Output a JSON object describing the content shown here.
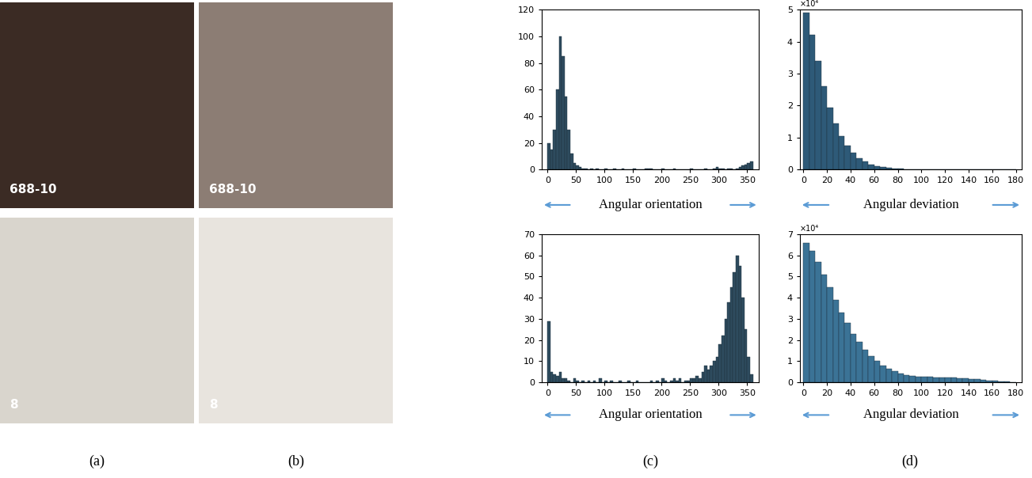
{
  "chart_data": [
    {
      "type": "histogram",
      "x_label": "Angular orientation",
      "color": "#2e4b5e",
      "bins": [
        0,
        5,
        10,
        15,
        20,
        25,
        30,
        35,
        40,
        45,
        50,
        55,
        60,
        65,
        70,
        75,
        80,
        85,
        90,
        95,
        100,
        105,
        110,
        115,
        120,
        125,
        130,
        135,
        140,
        145,
        150,
        155,
        160,
        165,
        170,
        175,
        180,
        185,
        190,
        195,
        200,
        205,
        210,
        215,
        220,
        225,
        230,
        235,
        240,
        245,
        250,
        255,
        260,
        265,
        270,
        275,
        280,
        285,
        290,
        295,
        300,
        305,
        310,
        315,
        320,
        325,
        330,
        335,
        340,
        345,
        350,
        355,
        360
      ],
      "counts": [
        20,
        15,
        30,
        60,
        100,
        85,
        55,
        30,
        12,
        5,
        3,
        2,
        1,
        1,
        0,
        1,
        0,
        1,
        0,
        0,
        1,
        0,
        0,
        1,
        0,
        0,
        1,
        0,
        0,
        0,
        1,
        0,
        0,
        0,
        1,
        1,
        1,
        0,
        0,
        0,
        1,
        0,
        0,
        0,
        1,
        0,
        0,
        0,
        0,
        0,
        1,
        0,
        0,
        0,
        0,
        1,
        0,
        0,
        1,
        2,
        1,
        1,
        0,
        1,
        1,
        0,
        1,
        2,
        3,
        4,
        5,
        6
      ],
      "xlim": [
        -10,
        370
      ],
      "ylim": [
        0,
        120
      ],
      "xticks": [
        0,
        50,
        100,
        150,
        200,
        250,
        300,
        350
      ],
      "yticks": [
        0,
        20,
        40,
        60,
        80,
        100,
        120
      ]
    },
    {
      "type": "histogram",
      "x_label": "Angular deviation",
      "color": "#2e5a78",
      "bins": [
        0,
        5,
        10,
        15,
        20,
        25,
        30,
        35,
        40,
        45,
        50,
        55,
        60,
        65,
        70,
        75,
        80,
        85,
        90,
        95,
        100,
        105,
        110,
        115,
        120,
        125,
        130,
        135,
        140,
        145,
        150,
        155,
        160,
        165,
        170,
        175,
        180
      ],
      "counts": [
        4.9,
        4.2,
        3.4,
        2.6,
        1.95,
        1.45,
        1.05,
        0.75,
        0.52,
        0.36,
        0.25,
        0.17,
        0.12,
        0.08,
        0.055,
        0.04,
        0.028,
        0.02,
        0.014,
        0.01,
        0.007,
        0.005,
        0.004,
        0.003,
        0.002,
        0.002,
        0.001,
        0.001,
        0.001,
        0,
        0,
        0,
        0,
        0,
        0,
        0
      ],
      "xlim": [
        -3,
        185
      ],
      "ylim": [
        0,
        5
      ],
      "xticks": [
        0,
        20,
        40,
        60,
        80,
        100,
        120,
        140,
        160,
        180
      ],
      "yticks": [
        0,
        1,
        2,
        3,
        4,
        5
      ],
      "annotations": [
        "×10⁴"
      ]
    },
    {
      "type": "histogram",
      "x_label": "Angular orientation",
      "color": "#2e4b5e",
      "bins": [
        0,
        5,
        10,
        15,
        20,
        25,
        30,
        35,
        40,
        45,
        50,
        55,
        60,
        65,
        70,
        75,
        80,
        85,
        90,
        95,
        100,
        105,
        110,
        115,
        120,
        125,
        130,
        135,
        140,
        145,
        150,
        155,
        160,
        165,
        170,
        175,
        180,
        185,
        190,
        195,
        200,
        205,
        210,
        215,
        220,
        225,
        230,
        235,
        240,
        245,
        250,
        255,
        260,
        265,
        270,
        275,
        280,
        285,
        290,
        295,
        300,
        305,
        310,
        315,
        320,
        325,
        330,
        335,
        340,
        345,
        350,
        355,
        360
      ],
      "counts": [
        29,
        5,
        4,
        3,
        5,
        2,
        2,
        1,
        0,
        2,
        1,
        0,
        1,
        0,
        1,
        0,
        1,
        0,
        2,
        0,
        1,
        0,
        1,
        0,
        0,
        1,
        0,
        0,
        1,
        0,
        0,
        1,
        0,
        0,
        0,
        0,
        1,
        0,
        1,
        0,
        2,
        1,
        0,
        1,
        2,
        1,
        2,
        0,
        1,
        1,
        2,
        2,
        3,
        2,
        5,
        8,
        6,
        8,
        10,
        12,
        18,
        22,
        30,
        38,
        45,
        52,
        60,
        55,
        40,
        25,
        12,
        4
      ],
      "xlim": [
        -10,
        370
      ],
      "ylim": [
        0,
        70
      ],
      "xticks": [
        0,
        50,
        100,
        150,
        200,
        250,
        300,
        350
      ],
      "yticks": [
        0,
        10,
        20,
        30,
        40,
        50,
        60,
        70
      ]
    },
    {
      "type": "histogram",
      "x_label": "Angular deviation",
      "color": "#3b7396",
      "bins": [
        0,
        5,
        10,
        15,
        20,
        25,
        30,
        35,
        40,
        45,
        50,
        55,
        60,
        65,
        70,
        75,
        80,
        85,
        90,
        95,
        100,
        105,
        110,
        115,
        120,
        125,
        130,
        135,
        140,
        145,
        150,
        155,
        160,
        165,
        170,
        175,
        180
      ],
      "counts": [
        6.6,
        6.2,
        5.7,
        5.1,
        4.5,
        3.9,
        3.3,
        2.8,
        2.3,
        1.9,
        1.55,
        1.25,
        1.0,
        0.8,
        0.65,
        0.52,
        0.42,
        0.35,
        0.3,
        0.28,
        0.27,
        0.26,
        0.25,
        0.24,
        0.23,
        0.22,
        0.2,
        0.18,
        0.16,
        0.14,
        0.12,
        0.1,
        0.08,
        0.06,
        0.04,
        0.02
      ],
      "xlim": [
        -3,
        185
      ],
      "ylim": [
        0,
        7
      ],
      "xticks": [
        0,
        20,
        40,
        60,
        80,
        100,
        120,
        140,
        160,
        180
      ],
      "yticks": [
        0,
        1,
        2,
        3,
        4,
        5,
        6,
        7
      ],
      "annotations": [
        "×10⁴"
      ]
    }
  ],
  "images": [
    {
      "overlay_text": "688-10"
    },
    {
      "overlay_text": "688-10"
    },
    {
      "overlay_text": "8"
    },
    {
      "overlay_text": "8"
    }
  ],
  "panel_labels": [
    "(a)",
    "(b)",
    "(c)",
    "(d)"
  ]
}
